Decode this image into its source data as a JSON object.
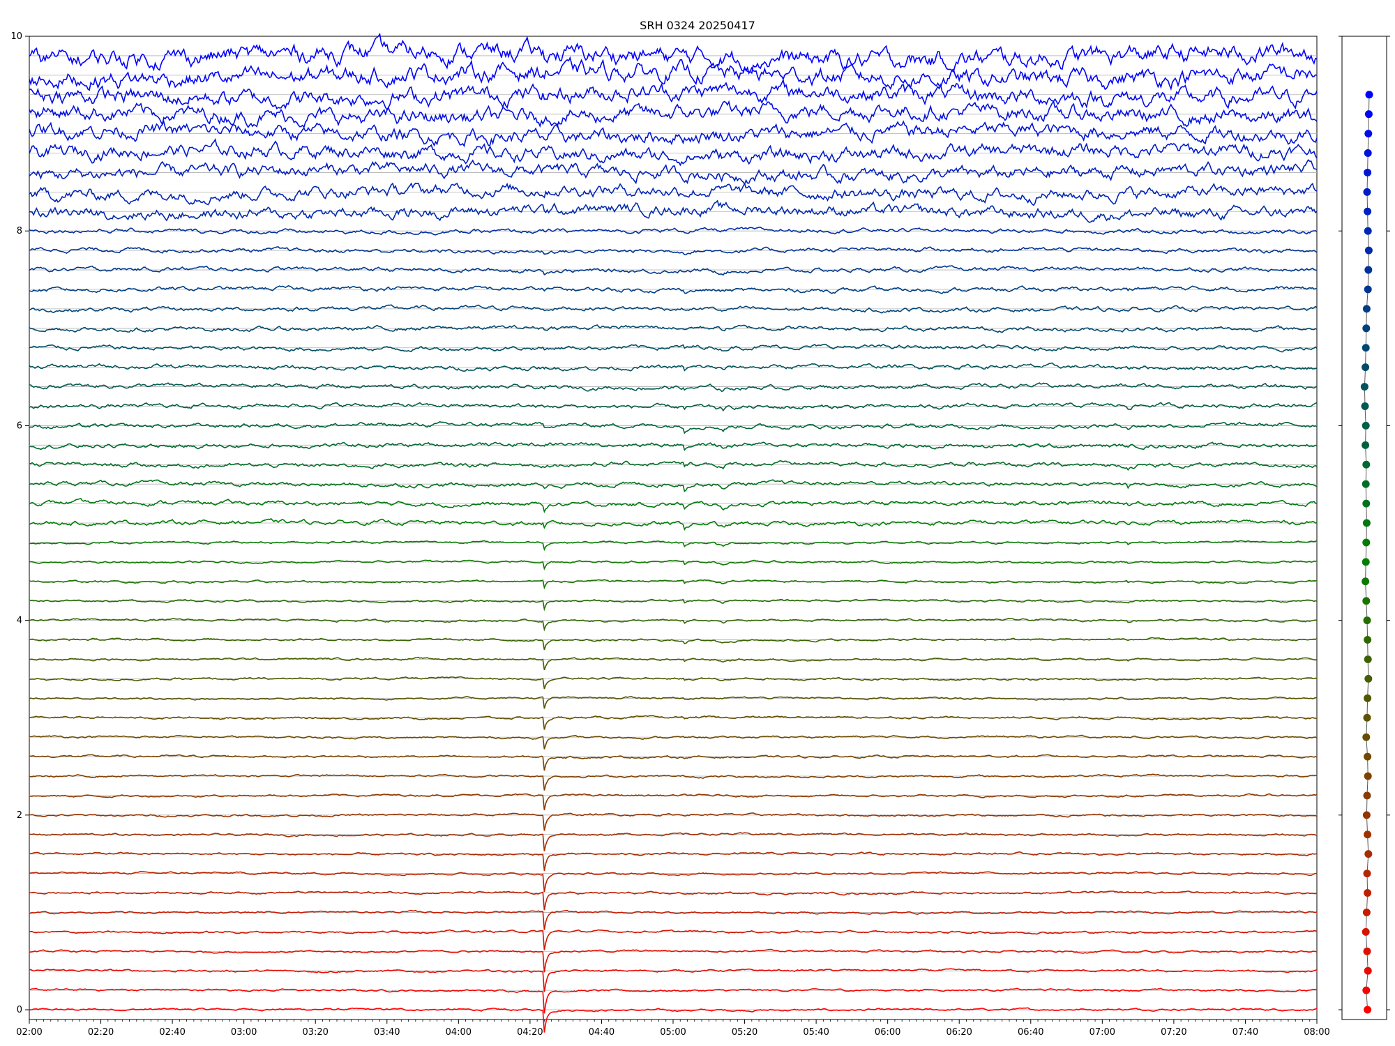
{
  "chart_data": [
    {
      "type": "line",
      "title": "SRH 0324 20250417",
      "xlabel": "",
      "ylabel": "",
      "x_range": [
        "02:00",
        "08:00"
      ],
      "ylim": [
        -0.1,
        10
      ],
      "xticks": [
        "02:00",
        "02:20",
        "02:40",
        "03:00",
        "03:20",
        "03:40",
        "04:00",
        "04:20",
        "04:40",
        "05:00",
        "05:20",
        "05:40",
        "06:00",
        "06:20",
        "06:40",
        "07:00",
        "07:20",
        "07:40",
        "08:00"
      ],
      "yticks": [
        "0",
        "2",
        "4",
        "6",
        "8",
        "10"
      ],
      "grid": "horizontal baseline per trace",
      "trace_count": 50,
      "trace_spacing": 0.2,
      "baselines": [
        0,
        0.2,
        0.4,
        0.6,
        0.8,
        1.0,
        1.2,
        1.4,
        1.6,
        1.8,
        2.0,
        2.2,
        2.4,
        2.6,
        2.8,
        3.0,
        3.2,
        3.4,
        3.6,
        3.8,
        4.0,
        4.2,
        4.4,
        4.6,
        4.8,
        5.0,
        5.2,
        5.4,
        5.6,
        5.8,
        6.0,
        6.2,
        6.4,
        6.6,
        6.8,
        7.0,
        7.2,
        7.4,
        7.6,
        7.8,
        8.0,
        8.2,
        8.4,
        8.6,
        8.8,
        9.0,
        9.2,
        9.4,
        9.6,
        9.8
      ],
      "color_gradient": [
        "#ff0000",
        "#008000",
        "#0000ff"
      ],
      "events": [
        {
          "time": "04:24",
          "type": "sharp dip",
          "strongest_in": "low traces"
        },
        {
          "time": "05:03",
          "type": "dip",
          "strongest_in": "middle traces"
        },
        {
          "time": "05:14",
          "type": "dip",
          "strongest_in": "middle traces"
        },
        {
          "time": "07:07",
          "type": "dip",
          "strongest_in": "middle traces"
        }
      ]
    },
    {
      "type": "scatter",
      "title": "",
      "ylim": [
        -0.1,
        10
      ],
      "point_count": 48,
      "y_start": 0,
      "y_step": 0.2,
      "x_offsets": [
        0.1,
        -0.2,
        0.2,
        0.0,
        -0.3,
        -0.1,
        0.1,
        0.0,
        0.3,
        0.1,
        -0.1,
        0.0,
        0.2,
        0.1,
        -0.2,
        0.0,
        0.1,
        0.3,
        0.2,
        0.1,
        0.0,
        -0.2,
        -0.4,
        -0.3,
        -0.2,
        -0.1,
        -0.2,
        -0.3,
        -0.2,
        -0.4,
        -0.3,
        -0.5,
        -0.6,
        -0.4,
        -0.3,
        -0.2,
        -0.1,
        0.2,
        0.3,
        0.4,
        0.2,
        0.1,
        0.0,
        0.1,
        0.2,
        0.3,
        0.4,
        0.5
      ],
      "colors": "gradient red to green to blue"
    }
  ]
}
